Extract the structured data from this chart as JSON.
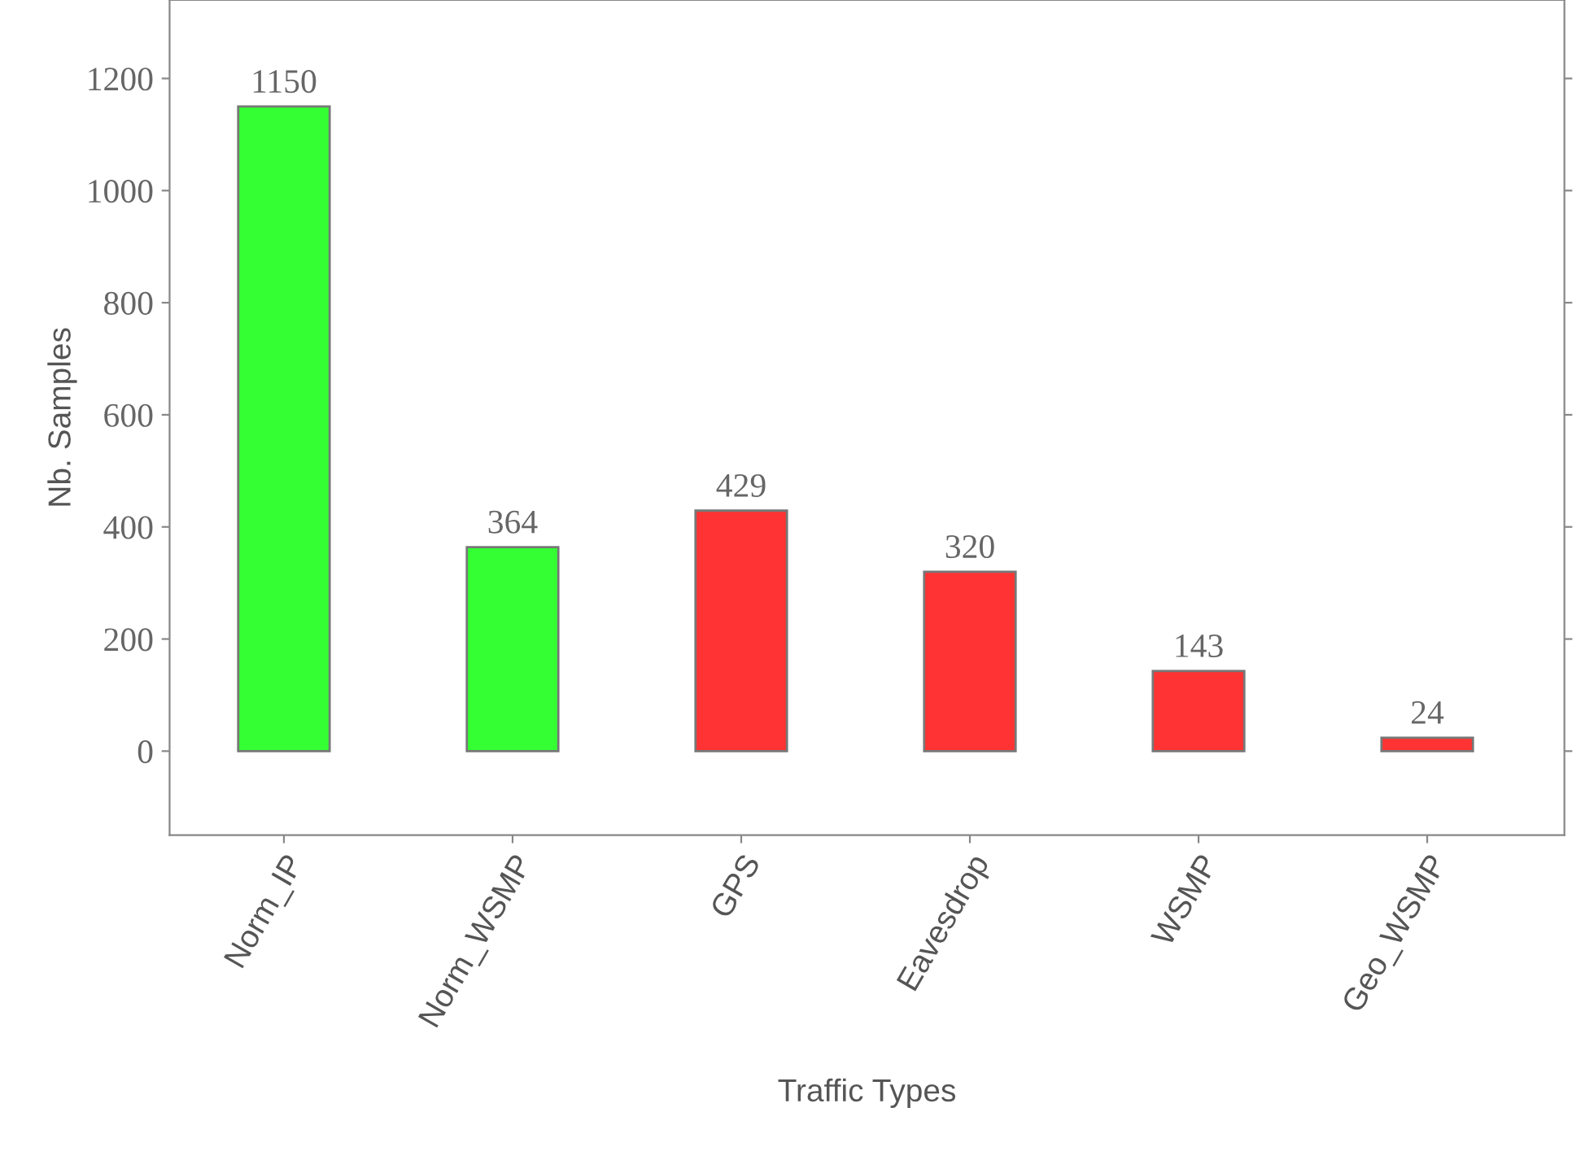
{
  "chart_data": {
    "type": "bar",
    "xlabel": "Traffic Types",
    "ylabel": "Nb. Samples",
    "categories": [
      "Norm_IP",
      "Norm_WSMP",
      "GPS",
      "Eavesdrop",
      "WSMP",
      "Geo_WSMP"
    ],
    "values": [
      1150,
      364,
      429,
      320,
      143,
      24
    ],
    "colors": [
      "#33ff33",
      "#33ff33",
      "#ff3333",
      "#ff3333",
      "#ff3333",
      "#ff3333"
    ],
    "ylim": [
      -150,
      1340
    ],
    "yticks": [
      0,
      200,
      400,
      600,
      800,
      1000,
      1200
    ],
    "data_labels": true,
    "grid": false,
    "legend": false
  }
}
